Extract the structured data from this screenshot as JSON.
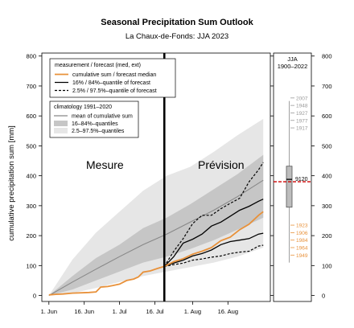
{
  "chart_data": {
    "type": "line",
    "title": "Seasonal Precipitation Sum Outlook",
    "subtitle": "La Chaux-de-Fonds: JJA 2023",
    "ylabel": "cumulative precipitation sum [mm]",
    "xlabel": "",
    "ylim": [
      -20,
      810
    ],
    "xlim": [
      -3,
      94
    ],
    "y_ticks": [
      0,
      100,
      200,
      300,
      400,
      500,
      600,
      700,
      800
    ],
    "x_ticks": [
      {
        "day": 0,
        "label": "1. Jun"
      },
      {
        "day": 15,
        "label": "16. Jun"
      },
      {
        "day": 30,
        "label": "1. Jul"
      },
      {
        "day": 45,
        "label": "16. Jul"
      },
      {
        "day": 61,
        "label": "1. Aug"
      },
      {
        "day": 76,
        "label": "16. Aug"
      }
    ],
    "forecast_start_day": 49,
    "annotations": {
      "past": "Mesure",
      "future": "Prévision"
    },
    "legend_forecast": {
      "title": "measurement / forecast (med, ext)",
      "items": [
        {
          "label": "cumulative sum / forecast median",
          "style": "orange"
        },
        {
          "label": "16% / 84%–quantile of forecast",
          "style": "solid"
        },
        {
          "label": "2.5% / 97.5%–quantile of forecast",
          "style": "dashed"
        }
      ]
    },
    "legend_climatology": {
      "title": "climatology 1991–2020",
      "items": [
        {
          "label": "mean of cumulative sum",
          "style": "gray-line"
        },
        {
          "label": "16–84%–quantiles",
          "style": "dark-band"
        },
        {
          "label": "2.5–97.5%–quantiles",
          "style": "light-band"
        }
      ]
    },
    "colors": {
      "measurement": "#e8913a",
      "forecast": "#000000",
      "clim_mean": "#888888",
      "band_inner": "#c6c6c6",
      "band_outer": "#e6e6e6",
      "marker": "#cc0000",
      "years_wet": "#999999",
      "years_dry": "#e8913a"
    },
    "climatology": {
      "x": [
        0,
        10,
        20,
        30,
        40,
        50,
        60,
        70,
        80,
        91
      ],
      "mean": [
        0,
        45,
        88,
        130,
        170,
        205,
        245,
        285,
        330,
        385
      ],
      "q16": [
        0,
        20,
        50,
        80,
        110,
        130,
        155,
        185,
        220,
        260
      ],
      "q84": [
        0,
        65,
        125,
        170,
        225,
        260,
        305,
        355,
        405,
        470
      ],
      "q025": [
        0,
        8,
        25,
        45,
        65,
        80,
        95,
        110,
        130,
        160
      ],
      "q975": [
        0,
        120,
        210,
        280,
        350,
        400,
        430,
        480,
        535,
        590
      ]
    },
    "measurement": {
      "x": [
        0,
        3,
        6,
        10,
        14,
        17,
        20,
        22,
        25,
        27,
        30,
        33,
        36,
        38,
        40,
        43,
        46,
        49
      ],
      "y": [
        2,
        4,
        5,
        8,
        9,
        10,
        12,
        28,
        30,
        33,
        38,
        50,
        55,
        62,
        78,
        82,
        90,
        97
      ]
    },
    "forecast": {
      "x": [
        49,
        53,
        57,
        61,
        65,
        69,
        73,
        77,
        81,
        85,
        89,
        91
      ],
      "median": [
        97,
        113,
        123,
        138,
        148,
        160,
        183,
        195,
        220,
        238,
        268,
        280
      ],
      "q16": [
        97,
        108,
        118,
        132,
        140,
        152,
        170,
        180,
        185,
        190,
        205,
        208
      ],
      "q84": [
        97,
        130,
        175,
        188,
        205,
        232,
        245,
        265,
        285,
        298,
        315,
        322
      ],
      "q025": [
        97,
        103,
        108,
        118,
        122,
        128,
        132,
        140,
        145,
        148,
        165,
        168
      ],
      "q975": [
        97,
        148,
        190,
        240,
        268,
        268,
        290,
        308,
        325,
        380,
        420,
        445
      ]
    },
    "side_panel": {
      "title": "JJA",
      "subtitle": "1900–2022",
      "box": {
        "low": 295,
        "high": 432,
        "median": 388
      },
      "whisker": {
        "low": 110,
        "high": 650
      },
      "current_value": 380,
      "marker_label": "9120",
      "wet_years": [
        {
          "year": "2007",
          "value": 660
        },
        {
          "year": "1948",
          "value": 635
        },
        {
          "year": "1927",
          "value": 610
        },
        {
          "year": "1977",
          "value": 585
        },
        {
          "year": "1917",
          "value": 560
        }
      ],
      "dry_years": [
        {
          "year": "1923",
          "value": 235
        },
        {
          "year": "1906",
          "value": 210
        },
        {
          "year": "1984",
          "value": 185
        },
        {
          "year": "1964",
          "value": 160
        },
        {
          "year": "1949",
          "value": 135
        }
      ]
    }
  }
}
